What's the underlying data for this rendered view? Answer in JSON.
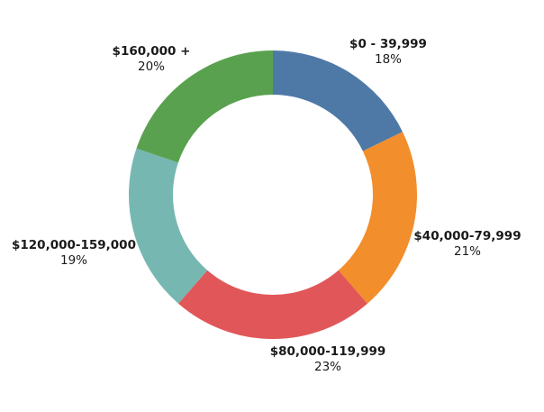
{
  "chart_data": {
    "type": "pie",
    "variant": "donut",
    "title": "",
    "categories": [
      "$0 - 39,999",
      "$40,000-79,999",
      "$80,000-119,999",
      "$120,000-159,000",
      "$160,000 +"
    ],
    "values": [
      18,
      21,
      23,
      19,
      20
    ],
    "percent_labels": [
      "18%",
      "21%",
      "23%",
      "19%",
      "20%"
    ],
    "colors": [
      "#4e79a7",
      "#f28e2b",
      "#e15759",
      "#76b7b2",
      "#59a14f"
    ],
    "legend": "none",
    "start_angle_deg": 0,
    "direction": "clockwise"
  }
}
